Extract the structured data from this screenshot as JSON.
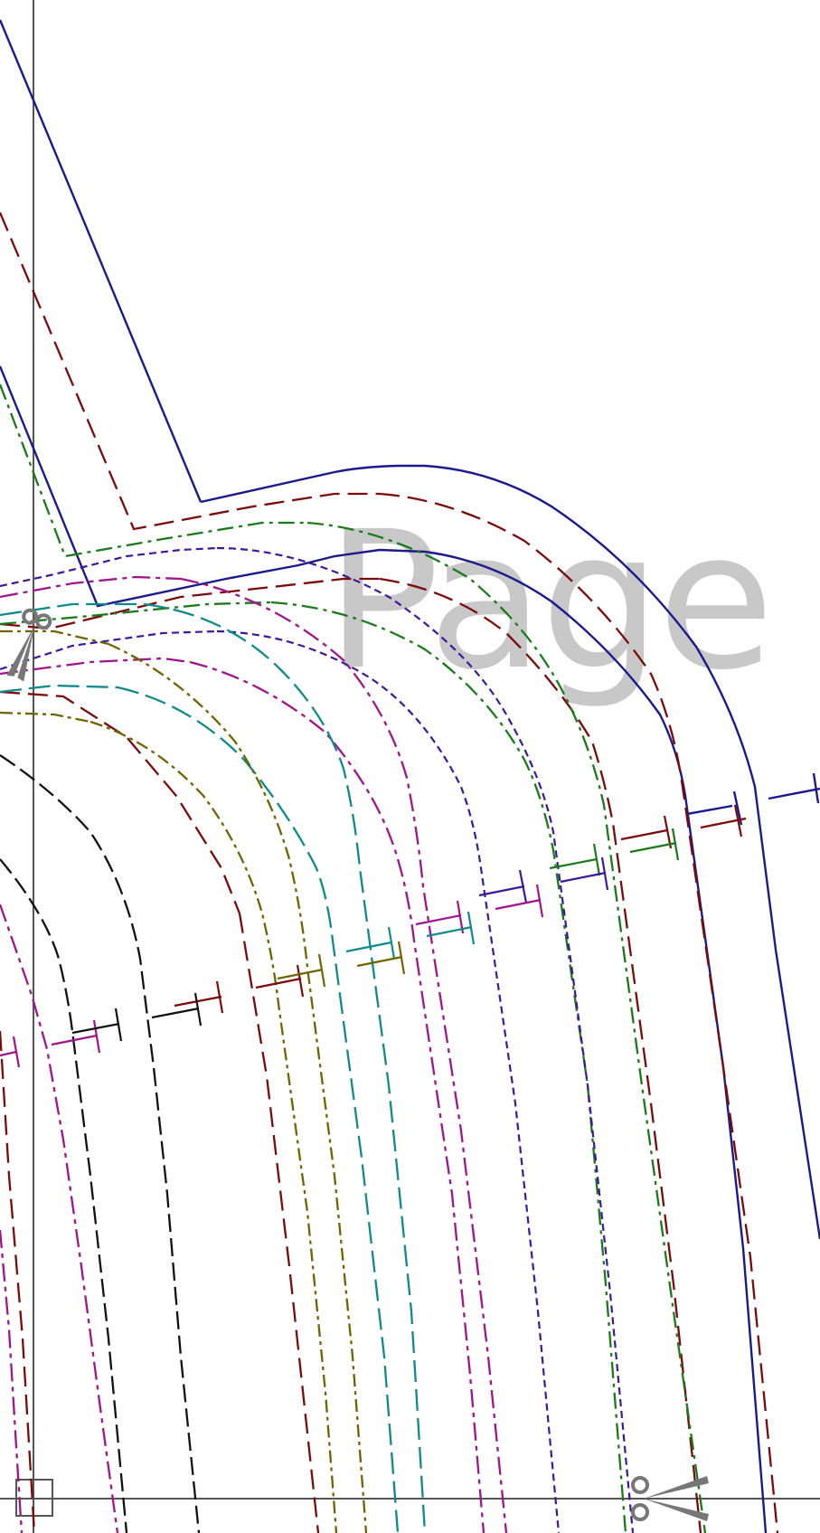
{
  "watermark": {
    "text": "Page"
  },
  "icons": {
    "scissors": "scissors-icon",
    "page_corner": "page-corner-marker"
  },
  "colors": {
    "navy": "#1a1a8c",
    "maroon": "#7b0a0a",
    "green": "#1a7a1a",
    "indigo": "#3a1a9a",
    "magenta": "#a0148c",
    "teal": "#0f8a8a",
    "olive": "#6e6400",
    "black": "#111111",
    "cut_line": "#555555",
    "scissors": "#777777",
    "watermark": "#c8c8c8"
  }
}
